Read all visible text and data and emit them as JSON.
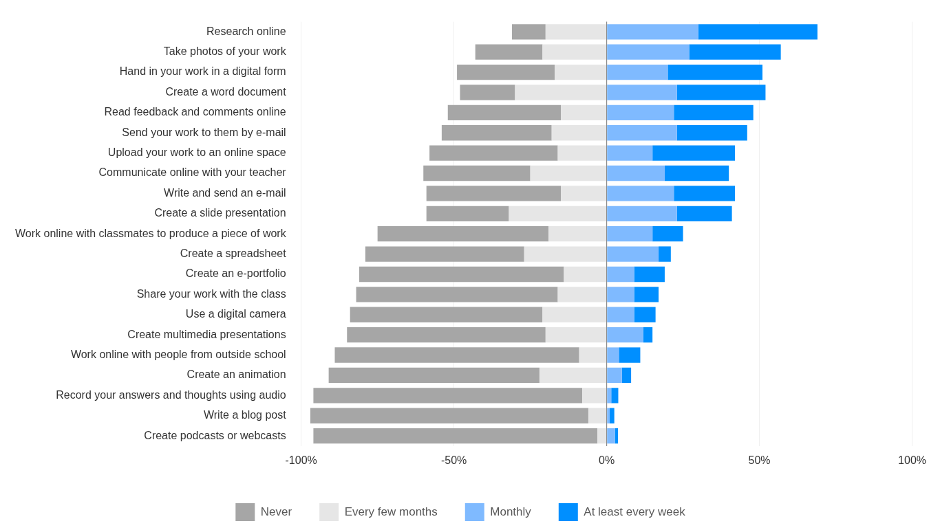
{
  "chart_data": {
    "type": "bar",
    "orientation": "horizontal",
    "stacked": true,
    "categories": [
      "Research online",
      "Take photos of your work",
      "Hand in your work in a digital form",
      "Create a word document",
      "Read feedback and comments online",
      "Send your work to them by e-mail",
      "Upload your work to an online space",
      "Communicate online with your teacher",
      "Write and send an e-mail",
      "Create a slide presentation",
      "Work online with classmates to produce a piece of work",
      "Create a spreadsheet",
      "Create an e-portfolio",
      "Share your work with the class",
      "Use a digital camera",
      "Create multimedia presentations",
      "Work online with people from outside school",
      "Create an animation",
      "Record your answers and thoughts using audio",
      "Write a blog post",
      "Create podcasts or webcasts"
    ],
    "series": [
      {
        "name": "Never",
        "color": "#a6a6a6",
        "values": [
          -11,
          -22,
          -32,
          -18,
          -37,
          -36,
          -42,
          -35,
          -44,
          -27,
          -56,
          -52,
          -67,
          -66,
          -63,
          -65,
          -80,
          -69,
          -88,
          -91,
          -93
        ]
      },
      {
        "name": "Every few months",
        "color": "#e6e6e6",
        "values": [
          -20,
          -21,
          -17,
          -30,
          -15,
          -18,
          -16,
          -25,
          -15,
          -32,
          -19,
          -27,
          -14,
          -16,
          -21,
          -20,
          -9,
          -22,
          -8,
          -6,
          -3
        ]
      },
      {
        "name": "Monthly",
        "color": "#7fbaff",
        "values": [
          30,
          27,
          20,
          23,
          22,
          23,
          15,
          19,
          22,
          23,
          15,
          17,
          9,
          9,
          9,
          12,
          4,
          5,
          1.5,
          1,
          2.7
        ]
      },
      {
        "name": "At least every week",
        "color": "#008fff",
        "values": [
          39,
          30,
          31,
          29,
          26,
          23,
          27,
          21,
          20,
          18,
          10,
          4,
          10,
          8,
          7,
          3,
          7,
          3,
          2.3,
          1.5,
          1
        ]
      }
    ],
    "xlim": [
      -100,
      100
    ],
    "xticks": [
      {
        "value": -100,
        "label": "-100%"
      },
      {
        "value": -50,
        "label": "-50%"
      },
      {
        "value": 0,
        "label": "0%"
      },
      {
        "value": 50,
        "label": "50%"
      },
      {
        "value": 100,
        "label": "100%"
      }
    ],
    "grid": "x",
    "legend": "bottom"
  }
}
